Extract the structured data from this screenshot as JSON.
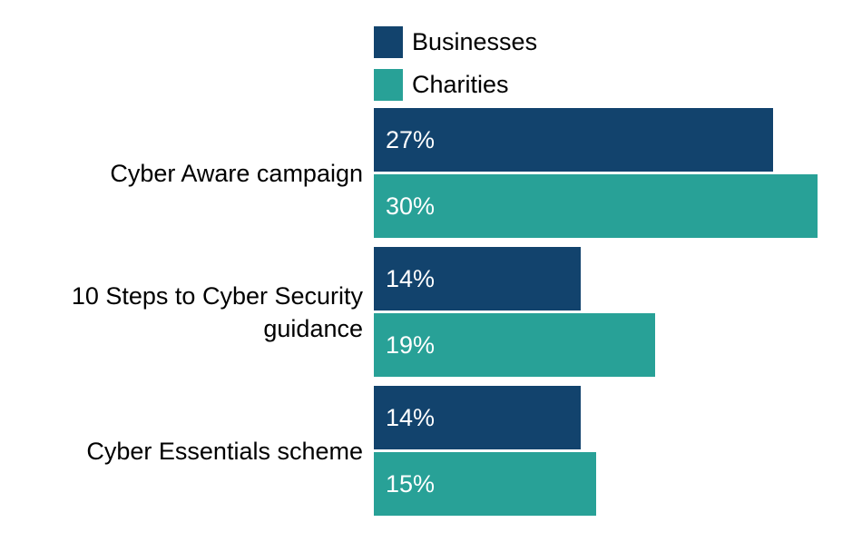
{
  "chart_data": {
    "type": "bar",
    "orientation": "horizontal",
    "title": "",
    "xlabel": "",
    "ylabel": "",
    "grid": false,
    "legend_position": "top",
    "value_labels_shown": true,
    "xlim": [
      0,
      30
    ],
    "categories": [
      "Cyber Aware campaign",
      "10 Steps to Cyber Security guidance",
      "Cyber Essentials scheme"
    ],
    "series": [
      {
        "name": "Businesses",
        "color": "#12436D",
        "values": [
          27,
          14,
          14
        ],
        "value_labels": [
          "27%",
          "14%",
          "14%"
        ]
      },
      {
        "name": "Charities",
        "color": "#28A197",
        "values": [
          30,
          19,
          15
        ],
        "value_labels": [
          "30%",
          "19%",
          "15%"
        ]
      }
    ]
  },
  "colors": {
    "background": "#FFFFFF",
    "bar_label_text": "#FFFFFF",
    "category_text": "#000000"
  }
}
